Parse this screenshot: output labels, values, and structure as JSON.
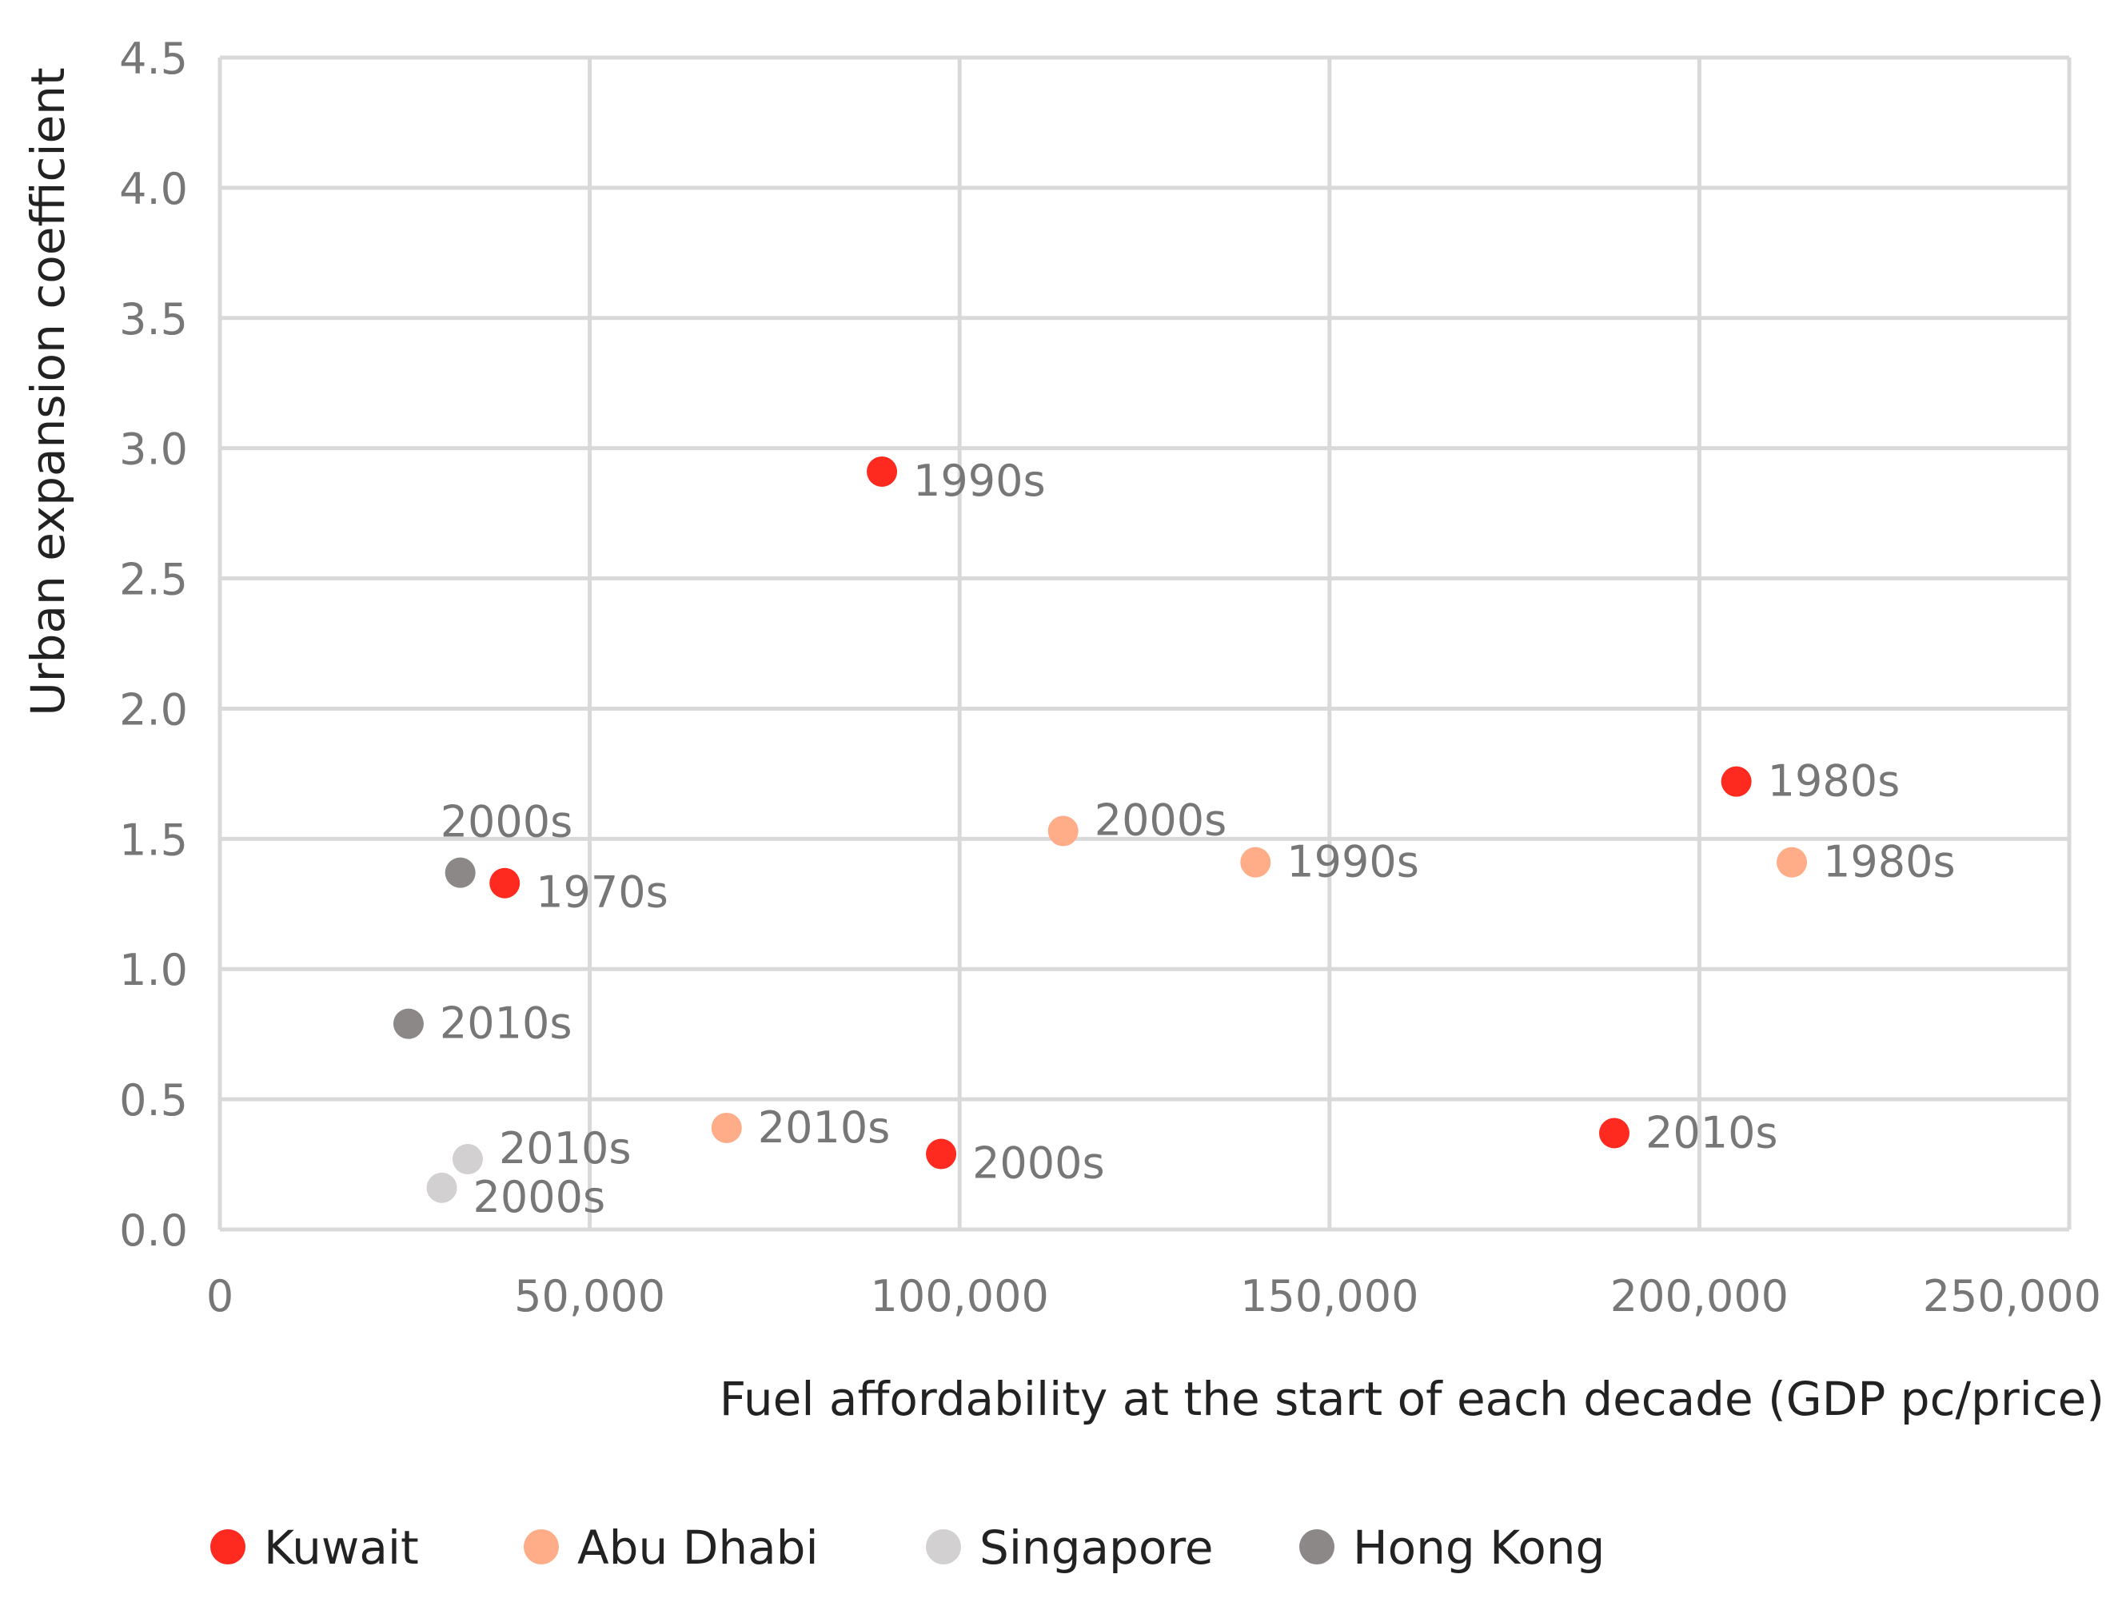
{
  "chart_data": {
    "type": "scatter",
    "title": "",
    "xlabel": "Fuel affordability at the start of each decade (GDP pc/price)",
    "ylabel": "Urban expansion coefficient",
    "xlim": [
      0,
      250000
    ],
    "ylim": [
      0,
      4.5
    ],
    "x_ticks": [
      {
        "value": 0,
        "label": "0"
      },
      {
        "value": 50000,
        "label": "50,000"
      },
      {
        "value": 100000,
        "label": "100,000"
      },
      {
        "value": 150000,
        "label": "150,000"
      },
      {
        "value": 200000,
        "label": "200,000"
      },
      {
        "value": 250000,
        "label": "250,000"
      }
    ],
    "y_ticks": [
      {
        "value": 0,
        "label": "0.0"
      },
      {
        "value": 0.5,
        "label": "0.5"
      },
      {
        "value": 1.0,
        "label": "1.0"
      },
      {
        "value": 1.5,
        "label": "1.5"
      },
      {
        "value": 2.0,
        "label": "2.0"
      },
      {
        "value": 2.5,
        "label": "2.5"
      },
      {
        "value": 3.0,
        "label": "3.0"
      },
      {
        "value": 3.5,
        "label": "3.5"
      },
      {
        "value": 4.0,
        "label": "4.0"
      },
      {
        "value": 4.5,
        "label": "4.5"
      }
    ],
    "grid": true,
    "legend_position": "bottom",
    "series": [
      {
        "name": "Kuwait",
        "color": "#ff2a1f",
        "points": [
          {
            "x": 38500,
            "y": 1.33,
            "label": "1970s",
            "label_side": "right-below"
          },
          {
            "x": 89500,
            "y": 2.91,
            "label": "1990s",
            "label_side": "right-below"
          },
          {
            "x": 97500,
            "y": 0.29,
            "label": "2000s",
            "label_side": "right-below"
          },
          {
            "x": 188500,
            "y": 0.37,
            "label": "2010s",
            "label_side": "right"
          },
          {
            "x": 205000,
            "y": 1.72,
            "label": "1980s",
            "label_side": "right"
          }
        ]
      },
      {
        "name": "Abu Dhabi",
        "color": "#ffac88",
        "points": [
          {
            "x": 68500,
            "y": 0.39,
            "label": "2010s",
            "label_side": "right"
          },
          {
            "x": 114000,
            "y": 1.53,
            "label": "2000s",
            "label_side": "right-above"
          },
          {
            "x": 140000,
            "y": 1.41,
            "label": "1990s",
            "label_side": "right"
          },
          {
            "x": 212500,
            "y": 1.41,
            "label": "1980s",
            "label_side": "right"
          }
        ]
      },
      {
        "name": "Singapore",
        "color": "#d2d0d0",
        "points": [
          {
            "x": 33500,
            "y": 0.27,
            "label": "2010s",
            "label_side": "right-above"
          },
          {
            "x": 30000,
            "y": 0.16,
            "label": "2000s",
            "label_side": "right-below"
          }
        ]
      },
      {
        "name": "Hong Kong",
        "color": "#8c8888",
        "points": [
          {
            "x": 32500,
            "y": 1.37,
            "label": "2000s",
            "label_side": "above"
          },
          {
            "x": 25500,
            "y": 0.79,
            "label": "2010s",
            "label_side": "right"
          }
        ]
      }
    ]
  }
}
